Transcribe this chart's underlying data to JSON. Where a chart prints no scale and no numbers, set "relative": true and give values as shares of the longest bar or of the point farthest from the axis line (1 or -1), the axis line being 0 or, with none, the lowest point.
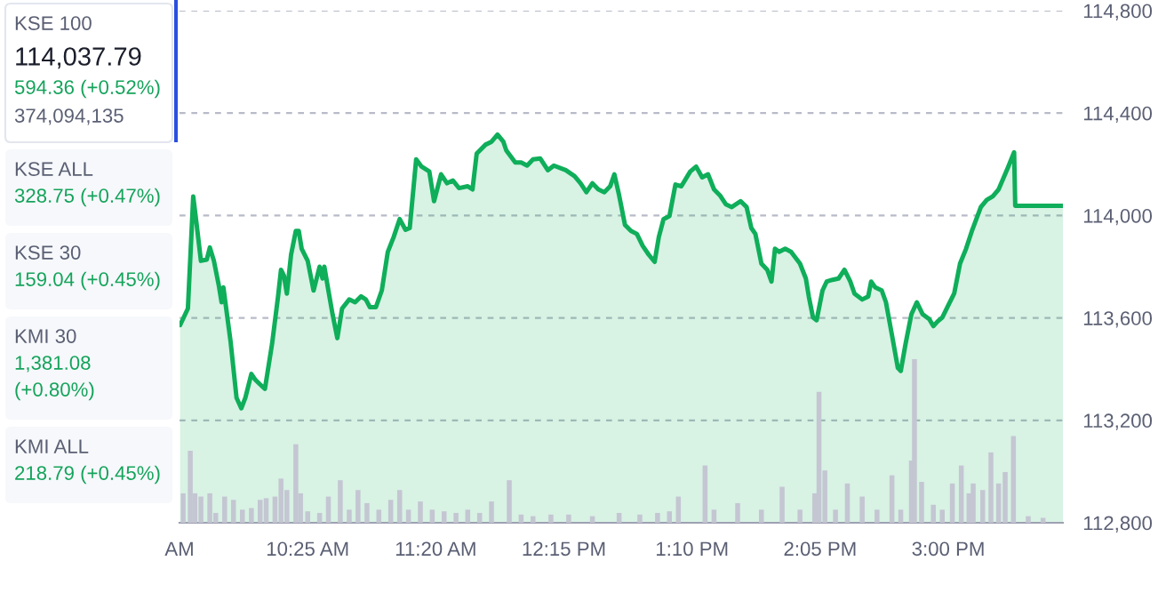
{
  "chart_data": [
    {
      "type": "other",
      "annotations": [
        "KSE 100\n114,037.79\n594.36 (+0.52%)\n374,094,135",
        "KSE ALL\n328.75 (+0.47%)",
        "KSE 30\n159.04 (+0.45%)",
        "KMI 30\n1,381.08\n(+0.80%)",
        "KMI ALL\n218.79 (+0.45%)"
      ]
    },
    {
      "type": "area",
      "color": "#0fae5a",
      "grid": "y",
      "x": [
        9.504,
        9.56,
        9.598,
        9.623,
        9.653,
        9.695,
        9.717,
        9.746,
        9.78,
        9.801,
        9.814,
        9.865,
        9.908,
        9.942,
        9.971,
        10.014,
        10.043,
        10.077,
        10.111,
        10.162,
        10.205,
        10.226,
        10.247,
        10.268,
        10.298,
        10.332,
        10.353,
        10.374,
        10.417,
        10.459,
        10.502,
        10.523,
        10.536,
        10.565,
        10.595,
        10.629,
        10.663,
        10.714,
        10.756,
        10.799,
        10.833,
        10.862,
        10.905,
        10.947,
        10.99,
        11.032,
        11.075,
        11.117,
        11.147,
        11.193,
        11.232,
        11.287,
        11.321,
        11.371,
        11.414,
        11.456,
        11.499,
        11.562,
        11.596,
        11.626,
        11.69,
        11.732,
        11.775,
        11.817,
        11.838,
        11.902,
        11.944,
        11.987,
        12.029,
        12.08,
        12.135,
        12.178,
        12.263,
        12.326,
        12.369,
        12.411,
        12.454,
        12.496,
        12.539,
        12.581,
        12.611,
        12.645,
        12.687,
        12.73,
        12.772,
        12.814,
        12.857,
        12.899,
        12.929,
        12.963,
        13.005,
        13.048,
        13.09,
        13.154,
        13.196,
        13.239,
        13.281,
        13.324,
        13.366,
        13.408,
        13.451,
        13.514,
        13.557,
        13.591,
        13.62,
        13.663,
        13.705,
        13.735,
        13.76,
        13.79,
        13.833,
        13.875,
        13.939,
        13.981,
        14.002,
        14.032,
        14.058,
        14.1,
        14.13,
        14.172,
        14.215,
        14.257,
        14.299,
        14.329,
        14.384,
        14.427,
        14.448,
        14.478,
        14.524,
        14.554,
        14.597,
        14.639,
        14.66,
        14.694,
        14.736,
        14.775,
        14.817,
        14.864,
        14.893,
        14.923,
        14.957,
        15.0,
        15.042,
        15.084,
        15.127,
        15.169,
        15.233,
        15.275,
        15.318,
        15.36,
        15.424,
        15.471,
        15.479,
        15.82
      ],
      "values": [
        113572,
        113637,
        114074,
        113963,
        113823,
        113828,
        113875,
        113823,
        113730,
        113661,
        113719,
        113509,
        113288,
        113247,
        113288,
        113381,
        113358,
        113340,
        113323,
        113498,
        113684,
        113788,
        113765,
        113695,
        113847,
        113940,
        113940,
        113870,
        113823,
        113707,
        113800,
        113754,
        113800,
        113707,
        113614,
        113521,
        113637,
        113672,
        113661,
        113684,
        113672,
        113642,
        113642,
        113707,
        113858,
        113916,
        113986,
        113944,
        113951,
        114219,
        114191,
        114172,
        114056,
        114161,
        114126,
        114137,
        114107,
        114114,
        114102,
        114242,
        114277,
        114288,
        114316,
        114288,
        114254,
        114207,
        114207,
        114195,
        114219,
        114223,
        114177,
        114195,
        114177,
        114154,
        114126,
        114091,
        114126,
        114102,
        114091,
        114114,
        114161,
        114079,
        113963,
        113940,
        113928,
        113881,
        113847,
        113819,
        113916,
        113986,
        113998,
        114121,
        114114,
        114172,
        114191,
        114149,
        114161,
        114102,
        114079,
        114044,
        114033,
        114056,
        114033,
        113951,
        113928,
        113812,
        113788,
        113742,
        113870,
        113858,
        113870,
        113858,
        113812,
        113754,
        113684,
        113602,
        113591,
        113707,
        113742,
        113749,
        113754,
        113788,
        113742,
        113695,
        113672,
        113684,
        113742,
        113719,
        113707,
        113661,
        113533,
        113405,
        113393,
        113498,
        113614,
        113661,
        113614,
        113595,
        113568,
        113586,
        113602,
        113649,
        113695,
        113812,
        113870,
        113940,
        114033,
        114061,
        114075,
        114102,
        114184,
        114247,
        114038,
        114038
      ],
      "xlim": [
        9.5,
        15.82
      ],
      "ylim": [
        112800,
        114800
      ],
      "xticks": [
        {
          "value": 9.5,
          "label": "AM"
        },
        {
          "value": 10.4167,
          "label": "10:25 AM"
        },
        {
          "value": 11.3333,
          "label": "11:20 AM"
        },
        {
          "value": 12.25,
          "label": "12:15 PM"
        },
        {
          "value": 13.1667,
          "label": "1:10 PM"
        },
        {
          "value": 14.0833,
          "label": "2:05 PM"
        },
        {
          "value": 15,
          "label": "3:00 PM"
        }
      ],
      "yticks": [
        {
          "value": 112800,
          "label": "112,800"
        },
        {
          "value": 113200,
          "label": "113,200"
        },
        {
          "value": 113600,
          "label": "113,600"
        },
        {
          "value": 114000,
          "label": "114,000"
        },
        {
          "value": 114400,
          "label": "114,400"
        },
        {
          "value": 114800,
          "label": "114,800"
        }
      ]
    },
    {
      "type": "bar",
      "relative": true,
      "color": "#c4c6d2",
      "xlim": [
        9.5,
        15.82
      ],
      "x": [
        9.526,
        9.577,
        9.61,
        9.653,
        9.717,
        9.759,
        9.823,
        9.886,
        9.95,
        10.014,
        10.077,
        10.12,
        10.183,
        10.226,
        10.268,
        10.332,
        10.366,
        10.417,
        10.502,
        10.565,
        10.65,
        10.714,
        10.777,
        10.841,
        10.926,
        11.011,
        11.075,
        11.138,
        11.223,
        11.308,
        11.393,
        11.478,
        11.562,
        11.647,
        11.732,
        11.859,
        11.944,
        12.029,
        12.157,
        12.284,
        12.454,
        12.645,
        12.793,
        12.92,
        13.005,
        13.069,
        13.26,
        13.324,
        13.493,
        13.663,
        13.811,
        13.939,
        14.045,
        14.075,
        14.117,
        14.193,
        14.278,
        14.384,
        14.49,
        14.597,
        14.66,
        14.736,
        14.758,
        14.809,
        14.893,
        14.957,
        15.029,
        15.093,
        15.148,
        15.178,
        15.246,
        15.305,
        15.36,
        15.407,
        15.466,
        15.572,
        15.678
      ],
      "values": [
        0.18,
        0.44,
        0.18,
        0.16,
        0.18,
        0.06,
        0.16,
        0.14,
        0.08,
        0.09,
        0.14,
        0.15,
        0.16,
        0.27,
        0.2,
        0.48,
        0.18,
        0.07,
        0.06,
        0.16,
        0.26,
        0.08,
        0.2,
        0.12,
        0.08,
        0.14,
        0.2,
        0.08,
        0.13,
        0.08,
        0.07,
        0.06,
        0.08,
        0.06,
        0.13,
        0.26,
        0.05,
        0.04,
        0.05,
        0.05,
        0.04,
        0.06,
        0.05,
        0.06,
        0.07,
        0.16,
        0.35,
        0.08,
        0.12,
        0.08,
        0.22,
        0.08,
        0.18,
        0.8,
        0.32,
        0.08,
        0.24,
        0.16,
        0.08,
        0.29,
        0.08,
        0.38,
        1,
        0.25,
        0.11,
        0.08,
        0.24,
        0.35,
        0.18,
        0.24,
        0.2,
        0.43,
        0.24,
        0.31,
        0.53,
        0.04,
        0.03
      ]
    }
  ]
}
